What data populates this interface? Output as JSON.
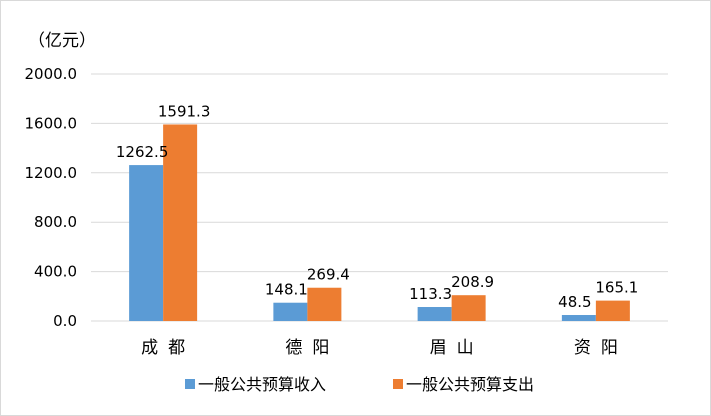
{
  "chart_data": {
    "type": "bar",
    "unit_label": "（亿元）",
    "categories": [
      "成都",
      "德阳",
      "眉山",
      "资阳"
    ],
    "series": [
      {
        "name": "一般公共预算收入",
        "values": [
          1262.5,
          148.1,
          113.3,
          48.5
        ],
        "color": "#5b9bd5"
      },
      {
        "name": "一般公共预算支出",
        "values": [
          1591.3,
          269.4,
          208.9,
          165.1
        ],
        "color": "#ed7d31"
      }
    ],
    "yticks": [
      "0.0",
      "400.0",
      "800.0",
      "1200.0",
      "1600.0",
      "2000.0"
    ],
    "ylim": [
      0,
      2000
    ],
    "grid": true,
    "legend_position": "bottom"
  }
}
